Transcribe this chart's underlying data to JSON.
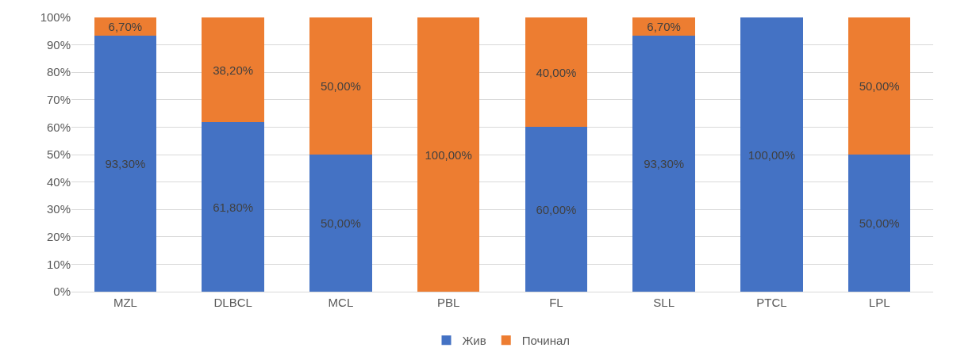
{
  "chart_data": {
    "type": "bar",
    "stacked": true,
    "categories": [
      "MZL",
      "DLBCL",
      "MCL",
      "PBL",
      "FL",
      "SLL",
      "PTCL",
      "LPL"
    ],
    "series": [
      {
        "name": "Жив",
        "color": "#4472c4",
        "values": [
          93.3,
          61.8,
          50,
          0,
          60,
          93.3,
          100,
          50
        ],
        "value_labels": [
          "93,30%",
          "61,80%",
          "50,00%",
          null,
          "60,00%",
          "93,30%",
          "100,00%",
          "50,00%"
        ]
      },
      {
        "name": "Починал",
        "color": "#ed7d31",
        "values": [
          6.7,
          38.2,
          50,
          100,
          40,
          6.7,
          0,
          50
        ],
        "value_labels": [
          "6,70%",
          "38,20%",
          "50,00%",
          "100,00%",
          "40,00%",
          "6,70%",
          null,
          "50,00%"
        ]
      }
    ],
    "ylim": [
      0,
      100
    ],
    "yticks": [
      {
        "value": 0,
        "label": "0%"
      },
      {
        "value": 10,
        "label": "10%"
      },
      {
        "value": 20,
        "label": "20%"
      },
      {
        "value": 30,
        "label": "30%"
      },
      {
        "value": 40,
        "label": "40%"
      },
      {
        "value": 50,
        "label": "50%"
      },
      {
        "value": 60,
        "label": "60%"
      },
      {
        "value": 70,
        "label": "70%"
      },
      {
        "value": 80,
        "label": "80%"
      },
      {
        "value": 90,
        "label": "90%"
      },
      {
        "value": 100,
        "label": "100%"
      }
    ],
    "grid": "y",
    "legend": "bottom"
  }
}
